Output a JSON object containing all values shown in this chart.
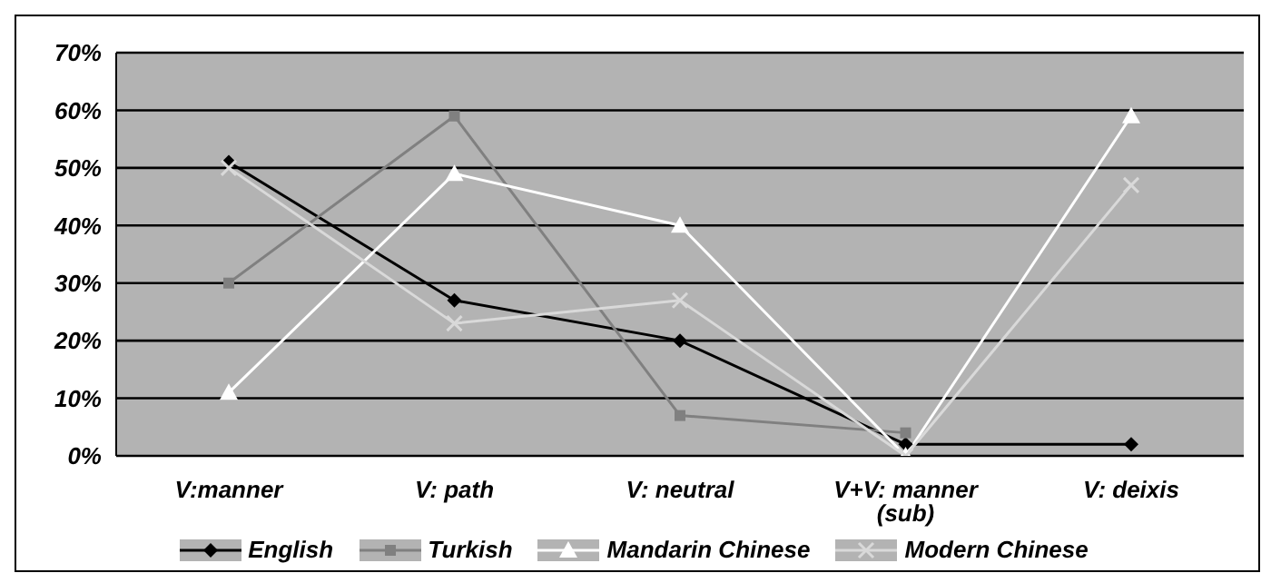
{
  "chart_data": {
    "type": "line",
    "categories": [
      "V:manner",
      "V: path",
      "V: neutral",
      "V+V: manner (sub)",
      "V: deixis"
    ],
    "series": [
      {
        "name": "English",
        "color": "#000000",
        "marker": "diamond",
        "values": [
          51,
          27,
          20,
          2,
          2
        ]
      },
      {
        "name": "Turkish",
        "color": "#808080",
        "marker": "square",
        "values": [
          30,
          59,
          7,
          4,
          null
        ]
      },
      {
        "name": "Mandarin Chinese",
        "color": "#ffffff",
        "marker": "triangle",
        "values": [
          11,
          49,
          40,
          0,
          59
        ]
      },
      {
        "name": "Modern Chinese",
        "color": "#d9d9d9",
        "marker": "cross",
        "values": [
          50,
          23,
          27,
          0,
          47
        ]
      }
    ],
    "ylim": [
      0,
      70
    ],
    "yticks": [
      {
        "value": 0,
        "label": "0%"
      },
      {
        "value": 10,
        "label": "10%"
      },
      {
        "value": 20,
        "label": "20%"
      },
      {
        "value": 30,
        "label": "30%"
      },
      {
        "value": 40,
        "label": "40%"
      },
      {
        "value": 50,
        "label": "50%"
      },
      {
        "value": 60,
        "label": "60%"
      },
      {
        "value": 70,
        "label": "70%"
      }
    ],
    "grid": "y",
    "legend": "bottom"
  }
}
